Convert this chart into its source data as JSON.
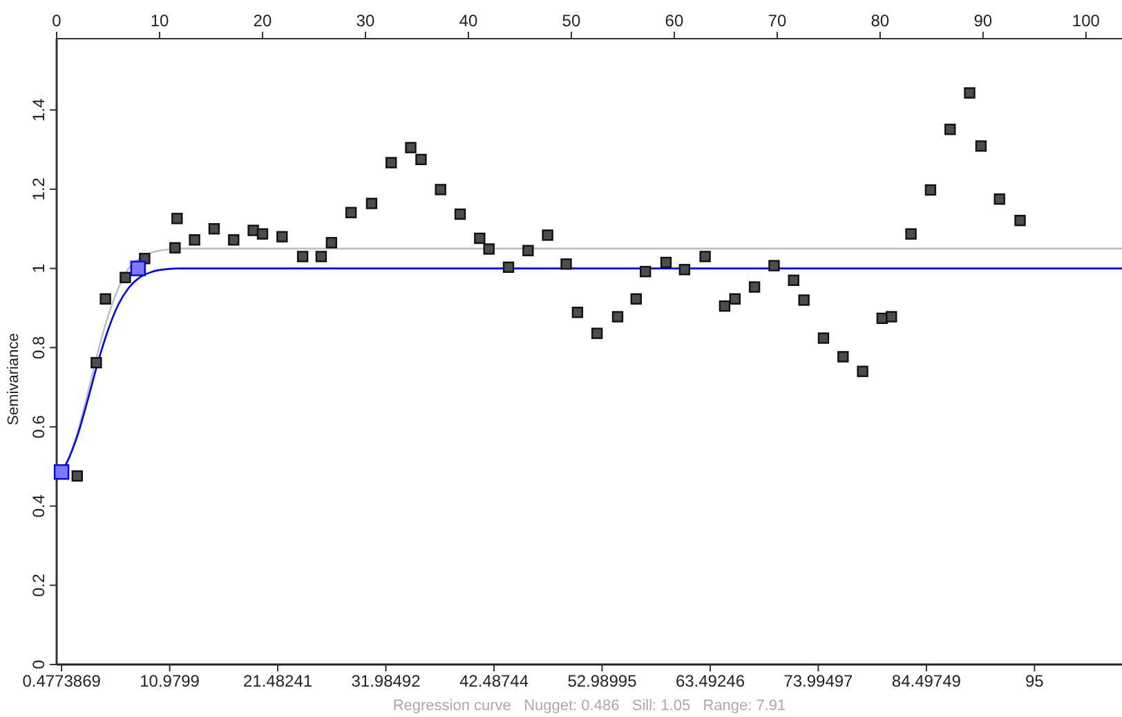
{
  "chart_data": {
    "type": "scatter",
    "ylabel": "Semivariance",
    "annotations": [
      "Regression curve   Nugget: 0.486   Sill: 1.05   Range: 7.91"
    ],
    "xlim": [
      0,
      103.5
    ],
    "xticks": [
      0,
      10,
      20,
      30,
      40,
      50,
      60,
      70,
      80,
      90,
      100
    ],
    "x2lim": [
      0,
      103.5
    ],
    "x2ticks": [
      0.4773869,
      10.9799,
      21.48241,
      31.98492,
      42.48744,
      52.98995,
      63.49246,
      73.99497,
      84.49749,
      95
    ],
    "ylim": [
      0,
      1.58
    ],
    "yticks": [
      0,
      0.2,
      0.4,
      0.6,
      0.8,
      1,
      1.2,
      1.4
    ],
    "grid": false,
    "series": [
      {
        "type": "line",
        "color": "#c0c0c0",
        "marker": "none",
        "x": [
          0.477,
          1,
          2,
          3,
          4,
          5,
          6,
          7,
          8,
          9,
          10,
          12,
          103.5
        ],
        "values": [
          0.492,
          0.512,
          0.585,
          0.683,
          0.788,
          0.88,
          0.95,
          1.0,
          1.024,
          1.038,
          1.045,
          1.05,
          1.05
        ]
      },
      {
        "type": "line",
        "color": "#0000ff",
        "marker": "none",
        "x": [
          0.477,
          1,
          2,
          3,
          4,
          5,
          6,
          7,
          8,
          9,
          10,
          12,
          103.5
        ],
        "values": [
          0.486,
          0.51,
          0.576,
          0.666,
          0.762,
          0.845,
          0.909,
          0.951,
          0.976,
          0.989,
          0.996,
          1.0,
          1.0
        ]
      },
      {
        "color": "#4d4d4d",
        "marker": "square",
        "x": [
          2.0,
          3.85,
          4.74,
          6.67,
          8.55,
          11.7,
          11.5,
          13.4,
          15.3,
          17.2,
          19.1,
          20.0,
          21.9,
          23.9,
          25.7,
          26.7,
          28.6,
          30.6,
          32.5,
          34.4,
          35.4,
          37.3,
          39.2,
          41.1,
          42.0,
          43.9,
          45.8,
          47.7,
          49.5,
          50.6,
          52.5,
          54.5,
          56.3,
          57.2,
          59.2,
          61.0,
          63.0,
          64.9,
          65.9,
          67.8,
          69.7,
          71.6,
          72.6,
          74.5,
          76.4,
          78.3,
          80.2,
          81.1,
          83.0,
          84.9,
          86.8,
          88.7,
          89.8,
          91.6,
          93.6
        ],
        "values": [
          0.476,
          0.762,
          0.923,
          0.977,
          1.025,
          1.126,
          1.052,
          1.072,
          1.1,
          1.072,
          1.096,
          1.087,
          1.08,
          1.03,
          1.03,
          1.065,
          1.141,
          1.164,
          1.267,
          1.305,
          1.275,
          1.199,
          1.137,
          1.076,
          1.049,
          1.003,
          1.045,
          1.084,
          1.011,
          0.889,
          0.836,
          0.878,
          0.923,
          0.992,
          1.015,
          0.997,
          1.03,
          0.905,
          0.923,
          0.953,
          1.007,
          0.97,
          0.92,
          0.824,
          0.777,
          0.74,
          0.874,
          0.878,
          1.087,
          1.198,
          1.351,
          1.443,
          1.309,
          1.175,
          1.121
        ]
      },
      {
        "color": "#7b7bff",
        "marker": "square",
        "x": [
          0.477,
          7.91
        ],
        "values": [
          0.486,
          1.0
        ]
      }
    ]
  }
}
